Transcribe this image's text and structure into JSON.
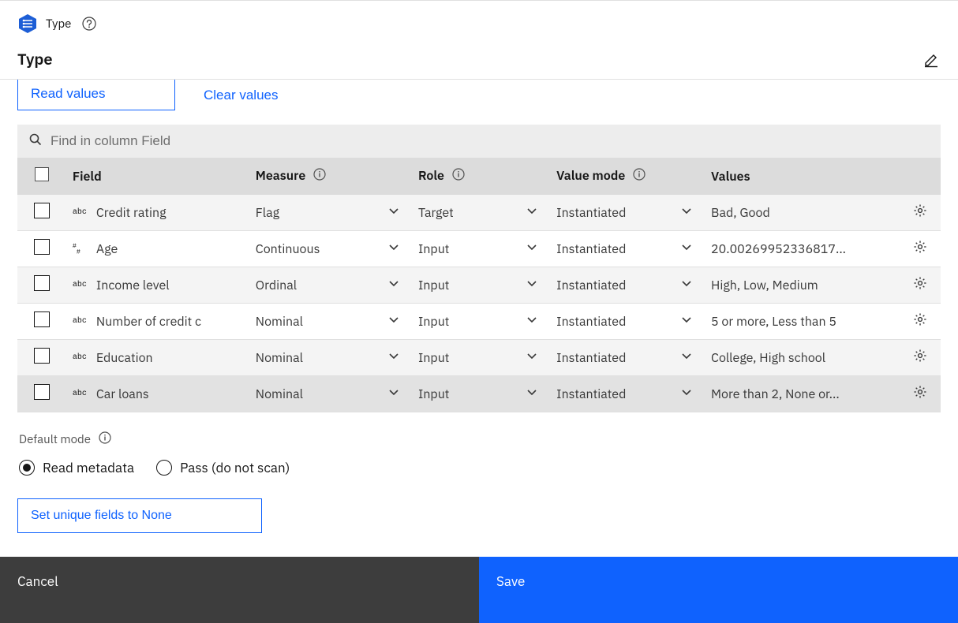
{
  "header": {
    "breadcrumb": "Type",
    "title": "Type"
  },
  "actions": {
    "read_values": "Read values",
    "clear_values": "Clear values",
    "set_unique_none": "Set unique fields to None"
  },
  "search": {
    "placeholder": "Find in column Field"
  },
  "table": {
    "headers": {
      "field": "Field",
      "measure": "Measure",
      "role": "Role",
      "value_mode": "Value mode",
      "values": "Values"
    },
    "rows": [
      {
        "field": "Credit rating",
        "ftype": "abc",
        "measure": "Flag",
        "role": "Target",
        "vmode": "Instantiated",
        "values": "Bad, Good"
      },
      {
        "field": "Age",
        "ftype": "num",
        "measure": "Continuous",
        "role": "Input",
        "vmode": "Instantiated",
        "values": "20.00269952336817..."
      },
      {
        "field": "Income level",
        "ftype": "abc",
        "measure": "Ordinal",
        "role": "Input",
        "vmode": "Instantiated",
        "values": "High, Low, Medium"
      },
      {
        "field": "Number of credit c",
        "ftype": "abc",
        "measure": "Nominal",
        "role": "Input",
        "vmode": "Instantiated",
        "values": "5 or more, Less than 5"
      },
      {
        "field": "Education",
        "ftype": "abc",
        "measure": "Nominal",
        "role": "Input",
        "vmode": "Instantiated",
        "values": "College, High school"
      },
      {
        "field": "Car loans",
        "ftype": "abc",
        "measure": "Nominal",
        "role": "Input",
        "vmode": "Instantiated",
        "values": "More than 2, None or..."
      }
    ]
  },
  "default_mode": {
    "label": "Default mode",
    "options": {
      "read_metadata": "Read metadata",
      "pass": "Pass (do not scan)"
    },
    "selected": "read_metadata"
  },
  "footer": {
    "cancel": "Cancel",
    "save": "Save"
  },
  "colors": {
    "primary": "#0f62fe",
    "dark": "#3d3d3d",
    "border": "#e0e0e0",
    "header_row": "#dcdcdc",
    "odd_row": "#f4f4f4"
  }
}
